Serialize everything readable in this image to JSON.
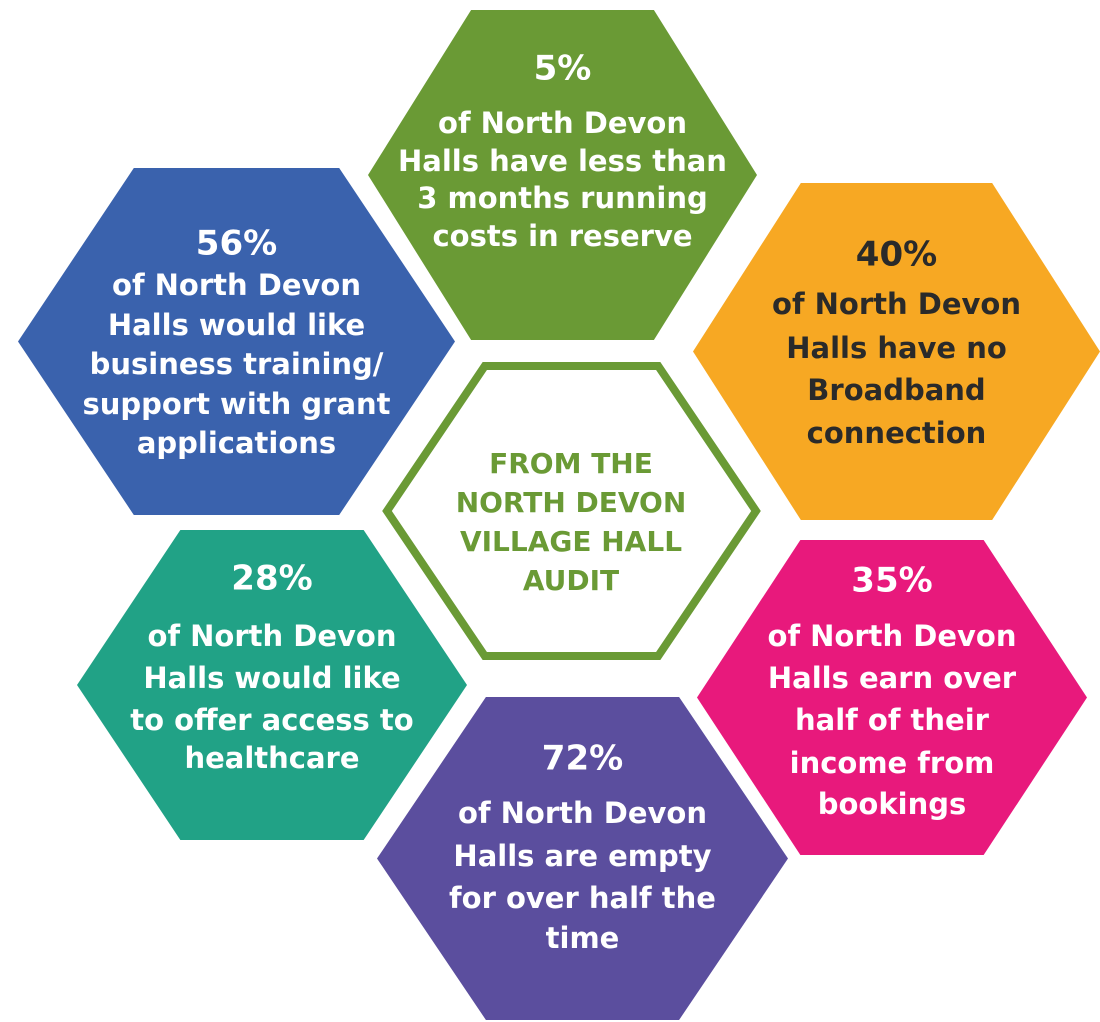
{
  "center": {
    "lines": [
      "FROM THE",
      "NORTH DEVON",
      "VILLAGE HALL",
      "AUDIT"
    ]
  },
  "hexagons": [
    {
      "stat": "5%",
      "lines": [
        "of North Devon",
        "Halls have less than",
        "3 months running",
        "costs in reserve"
      ]
    },
    {
      "stat": "56%",
      "lines": [
        "of North Devon",
        "Halls would like",
        "business training/",
        "support with grant",
        "applications"
      ]
    },
    {
      "stat": "40%",
      "lines": [
        "of North Devon",
        "Halls have no",
        "Broadband",
        "connection"
      ]
    },
    {
      "stat": "28%",
      "lines": [
        "of North Devon",
        "Halls would like",
        "to offer access to",
        "healthcare"
      ]
    },
    {
      "stat": "72%",
      "lines": [
        "of North Devon",
        "Halls are empty",
        "for over half the",
        "time"
      ]
    },
    {
      "stat": "35%",
      "lines": [
        "of North Devon",
        "Halls earn over",
        "half of their",
        "income from",
        "bookings"
      ]
    }
  ]
}
